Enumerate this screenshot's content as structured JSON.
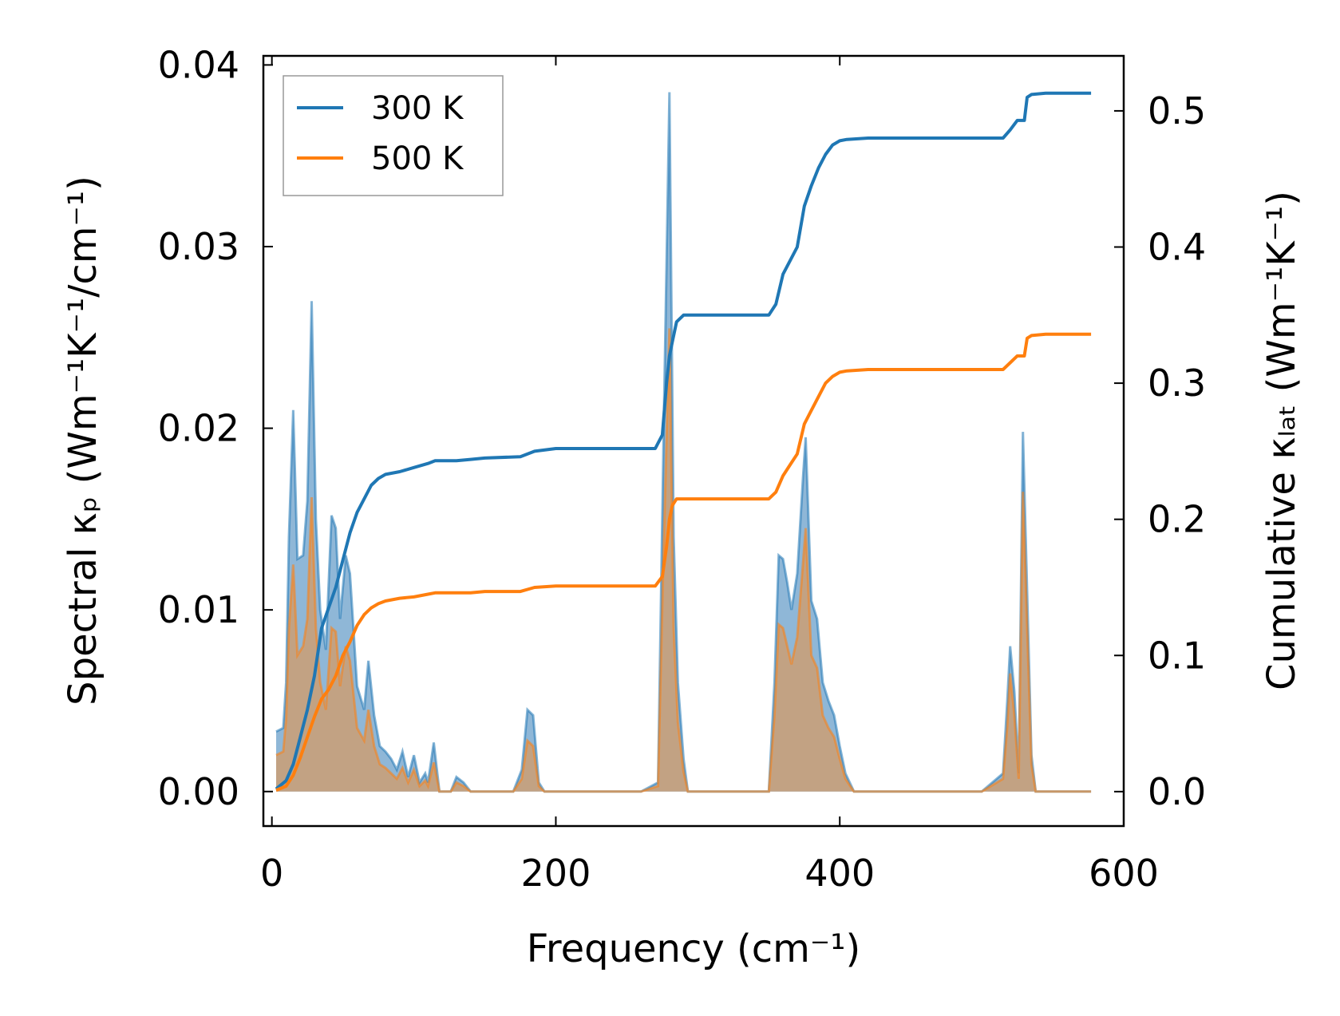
{
  "chart_data": {
    "type": "line",
    "xlabel": "Frequency (cm⁻¹)",
    "ylabel_left": "Spectral κₚ (Wm⁻¹K⁻¹/cm⁻¹)",
    "ylabel_right": "Cumulative κₗₐₜ (Wm⁻¹K⁻¹)",
    "xlim": [
      -6,
      600
    ],
    "ylim_left": [
      -0.0019,
      0.0405
    ],
    "ylim_right": [
      -0.0253,
      0.5404
    ],
    "xticks": [
      0,
      200,
      400,
      600
    ],
    "xtick_labels": [
      "0",
      "200",
      "400",
      "600"
    ],
    "yticks_left": [
      0,
      0.01,
      0.02,
      0.03,
      0.04
    ],
    "ytick_labels_left": [
      "0.00",
      "0.01",
      "0.02",
      "0.03",
      "0.04"
    ],
    "yticks_right": [
      0,
      0.1,
      0.2,
      0.3,
      0.4,
      0.5
    ],
    "ytick_labels_right": [
      "0.0",
      "0.1",
      "0.2",
      "0.3",
      "0.4",
      "0.5"
    ],
    "legend_position": "top-left",
    "grid": false,
    "colors": {
      "series_300K": "#1f77b4",
      "series_500K": "#ff7f0e",
      "fill_300K": "#6a9fc9",
      "fill_500K": "#c8a07a"
    },
    "spectral": [
      {
        "name": "300 K",
        "axis": "left",
        "x": [
          3,
          8,
          10,
          12,
          15,
          18,
          22,
          25,
          28,
          31,
          34,
          38,
          42,
          45,
          48,
          52,
          55,
          60,
          65,
          68,
          72,
          76,
          80,
          84,
          88,
          92,
          96,
          100,
          104,
          108,
          110,
          114,
          118,
          122,
          126,
          130,
          135,
          140,
          145,
          150,
          170,
          176,
          180,
          184,
          188,
          192,
          200,
          260,
          272,
          276,
          280,
          283,
          286,
          290,
          293,
          296,
          300,
          340,
          350,
          354,
          357,
          360,
          363,
          366,
          370,
          374,
          376,
          380,
          384,
          388,
          392,
          396,
          400,
          404,
          410,
          420,
          500,
          515,
          518,
          520,
          523,
          526,
          529,
          532,
          535,
          538,
          541,
          545,
          560,
          577
        ],
        "values": [
          0.0033,
          0.0035,
          0.006,
          0.014,
          0.021,
          0.0128,
          0.013,
          0.016,
          0.027,
          0.015,
          0.01,
          0.0078,
          0.0152,
          0.0145,
          0.0095,
          0.013,
          0.012,
          0.0058,
          0.0045,
          0.0072,
          0.0042,
          0.0025,
          0.0022,
          0.0018,
          0.0012,
          0.0022,
          0.0008,
          0.002,
          0.0005,
          0.001,
          0.0005,
          0.0027,
          0,
          0,
          0,
          0.0008,
          0.0005,
          0,
          0,
          0,
          0,
          0.0012,
          0.0045,
          0.0042,
          0.0005,
          0,
          0,
          0,
          0.0005,
          0.02,
          0.0385,
          0.014,
          0.006,
          0.0018,
          0,
          0,
          0,
          0,
          0,
          0.006,
          0.013,
          0.0128,
          0.0115,
          0.01,
          0.012,
          0.0172,
          0.0195,
          0.0105,
          0.0095,
          0.006,
          0.005,
          0.0042,
          0.0025,
          0.001,
          0,
          0,
          0,
          0.001,
          0.005,
          0.008,
          0.0055,
          0.001,
          0.0198,
          0.011,
          0.002,
          0,
          0,
          0,
          0,
          0
        ]
      },
      {
        "name": "500 K",
        "axis": "left",
        "x": [
          3,
          8,
          10,
          12,
          15,
          18,
          22,
          25,
          28,
          31,
          34,
          38,
          42,
          45,
          48,
          52,
          55,
          60,
          65,
          68,
          72,
          76,
          80,
          84,
          88,
          92,
          96,
          100,
          104,
          108,
          110,
          114,
          118,
          122,
          126,
          130,
          135,
          140,
          145,
          150,
          170,
          176,
          180,
          184,
          188,
          192,
          200,
          260,
          272,
          276,
          280,
          283,
          286,
          290,
          293,
          296,
          300,
          340,
          350,
          354,
          357,
          360,
          363,
          366,
          370,
          374,
          376,
          380,
          384,
          388,
          392,
          396,
          400,
          404,
          410,
          420,
          500,
          515,
          518,
          520,
          523,
          526,
          529,
          532,
          535,
          538,
          541,
          545,
          560,
          577
        ],
        "values": [
          0.002,
          0.0022,
          0.004,
          0.009,
          0.0125,
          0.0075,
          0.008,
          0.0095,
          0.0162,
          0.009,
          0.006,
          0.0045,
          0.009,
          0.0088,
          0.0058,
          0.008,
          0.0072,
          0.0035,
          0.0028,
          0.0045,
          0.0025,
          0.0015,
          0.0013,
          0.001,
          0.0007,
          0.0013,
          0.0005,
          0.0012,
          0.0003,
          0.0006,
          0.0003,
          0.0016,
          0,
          0,
          0,
          0.0005,
          0.0003,
          0,
          0,
          0,
          0,
          0.0007,
          0.0028,
          0.0025,
          0.0003,
          0,
          0,
          0,
          0.0003,
          0.0135,
          0.0255,
          0.009,
          0.0038,
          0.0011,
          0,
          0,
          0,
          0,
          0,
          0.0042,
          0.0092,
          0.009,
          0.008,
          0.007,
          0.0085,
          0.0125,
          0.0145,
          0.0075,
          0.0068,
          0.0042,
          0.0035,
          0.003,
          0.0018,
          0.0007,
          0,
          0,
          0,
          0.0007,
          0.0036,
          0.0065,
          0.0042,
          0.0007,
          0.0165,
          0.009,
          0.0015,
          0,
          0,
          0,
          0,
          0
        ]
      }
    ],
    "cumulative": [
      {
        "name": "300 K",
        "axis": "right",
        "x": [
          3,
          10,
          15,
          20,
          25,
          30,
          35,
          40,
          45,
          50,
          55,
          60,
          65,
          70,
          75,
          80,
          90,
          100,
          110,
          115,
          130,
          140,
          150,
          175,
          185,
          200,
          270,
          275,
          278,
          280,
          282,
          285,
          290,
          300,
          350,
          355,
          360,
          365,
          370,
          375,
          380,
          385,
          390,
          395,
          400,
          405,
          420,
          500,
          515,
          520,
          525,
          530,
          532,
          535,
          545,
          577
        ],
        "values": [
          0.002,
          0.008,
          0.02,
          0.04,
          0.06,
          0.085,
          0.12,
          0.135,
          0.15,
          0.17,
          0.19,
          0.205,
          0.215,
          0.225,
          0.23,
          0.233,
          0.235,
          0.238,
          0.241,
          0.243,
          0.243,
          0.244,
          0.245,
          0.246,
          0.25,
          0.252,
          0.252,
          0.262,
          0.3,
          0.32,
          0.33,
          0.345,
          0.35,
          0.35,
          0.35,
          0.358,
          0.38,
          0.39,
          0.4,
          0.43,
          0.445,
          0.458,
          0.468,
          0.475,
          0.478,
          0.479,
          0.48,
          0.48,
          0.48,
          0.486,
          0.493,
          0.493,
          0.51,
          0.512,
          0.513,
          0.513
        ]
      },
      {
        "name": "500 K",
        "axis": "right",
        "x": [
          3,
          10,
          15,
          20,
          25,
          30,
          35,
          40,
          45,
          50,
          55,
          60,
          65,
          70,
          75,
          80,
          90,
          100,
          110,
          115,
          130,
          140,
          150,
          175,
          185,
          200,
          270,
          275,
          278,
          280,
          282,
          285,
          290,
          300,
          350,
          355,
          360,
          365,
          370,
          375,
          380,
          385,
          390,
          395,
          400,
          405,
          420,
          500,
          515,
          520,
          525,
          530,
          532,
          535,
          545,
          577
        ],
        "values": [
          0.001,
          0.004,
          0.012,
          0.025,
          0.04,
          0.055,
          0.068,
          0.075,
          0.085,
          0.1,
          0.11,
          0.122,
          0.13,
          0.135,
          0.138,
          0.14,
          0.142,
          0.143,
          0.145,
          0.146,
          0.146,
          0.146,
          0.147,
          0.147,
          0.15,
          0.151,
          0.151,
          0.158,
          0.18,
          0.2,
          0.21,
          0.215,
          0.215,
          0.215,
          0.215,
          0.22,
          0.232,
          0.24,
          0.248,
          0.27,
          0.28,
          0.29,
          0.3,
          0.305,
          0.308,
          0.309,
          0.31,
          0.31,
          0.31,
          0.315,
          0.32,
          0.32,
          0.333,
          0.335,
          0.336,
          0.336
        ]
      }
    ],
    "legend": [
      {
        "label": "300 K",
        "color": "#1f77b4"
      },
      {
        "label": "500 K",
        "color": "#ff7f0e"
      }
    ]
  }
}
